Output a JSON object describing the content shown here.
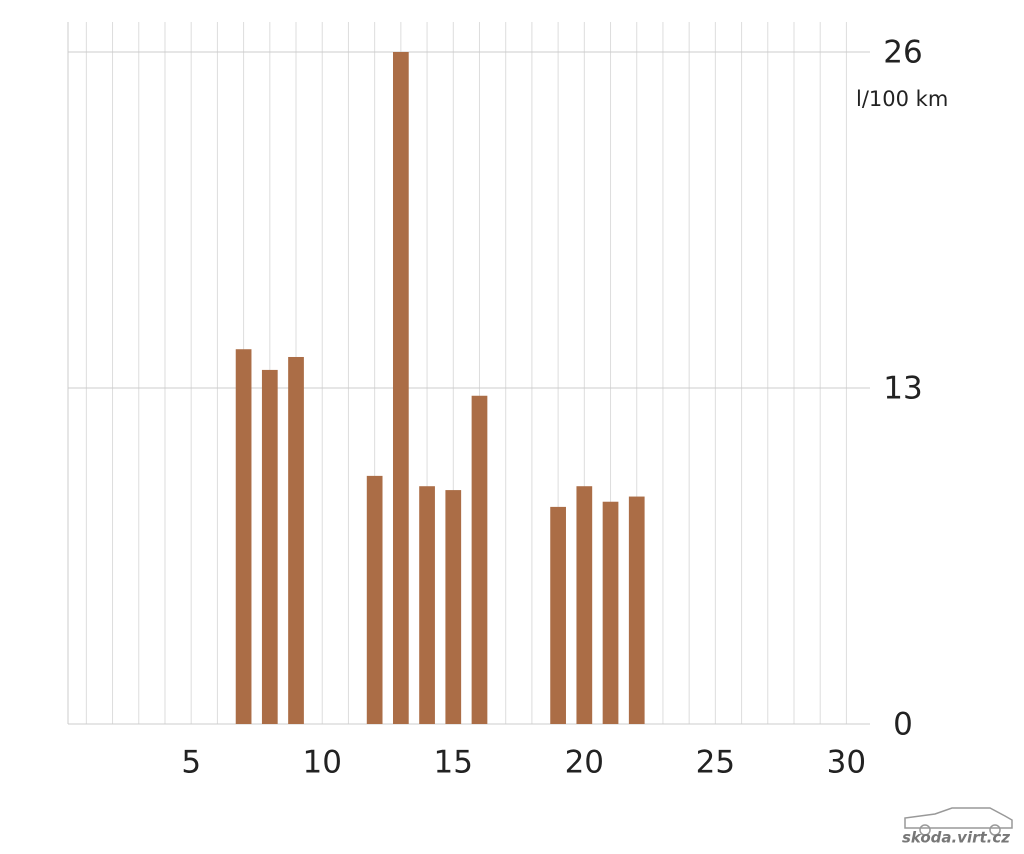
{
  "chart_data": {
    "type": "bar",
    "y_label": "l/100 km",
    "y_axis_side": "right",
    "x": [
      7,
      8,
      9,
      12,
      13,
      14,
      15,
      16,
      19,
      20,
      21,
      22
    ],
    "values": [
      14.5,
      13.7,
      14.2,
      9.6,
      26,
      9.2,
      9.05,
      12.7,
      8.4,
      9.2,
      8.6,
      8.8
    ],
    "color": "#ab6d46",
    "xlim": [
      0.3,
      30.9
    ],
    "xticks": [
      5,
      10,
      15,
      20,
      25,
      30
    ],
    "xgrid": [
      1,
      2,
      3,
      4,
      5,
      6,
      7,
      8,
      9,
      10,
      11,
      12,
      13,
      14,
      15,
      16,
      17,
      18,
      19,
      20,
      21,
      22,
      23,
      24,
      25,
      26,
      27,
      28,
      29,
      30
    ],
    "ylim": [
      0,
      26
    ],
    "yticks": [
      0,
      13,
      26
    ],
    "grid": true
  },
  "watermark": "skoda.virt.cz"
}
